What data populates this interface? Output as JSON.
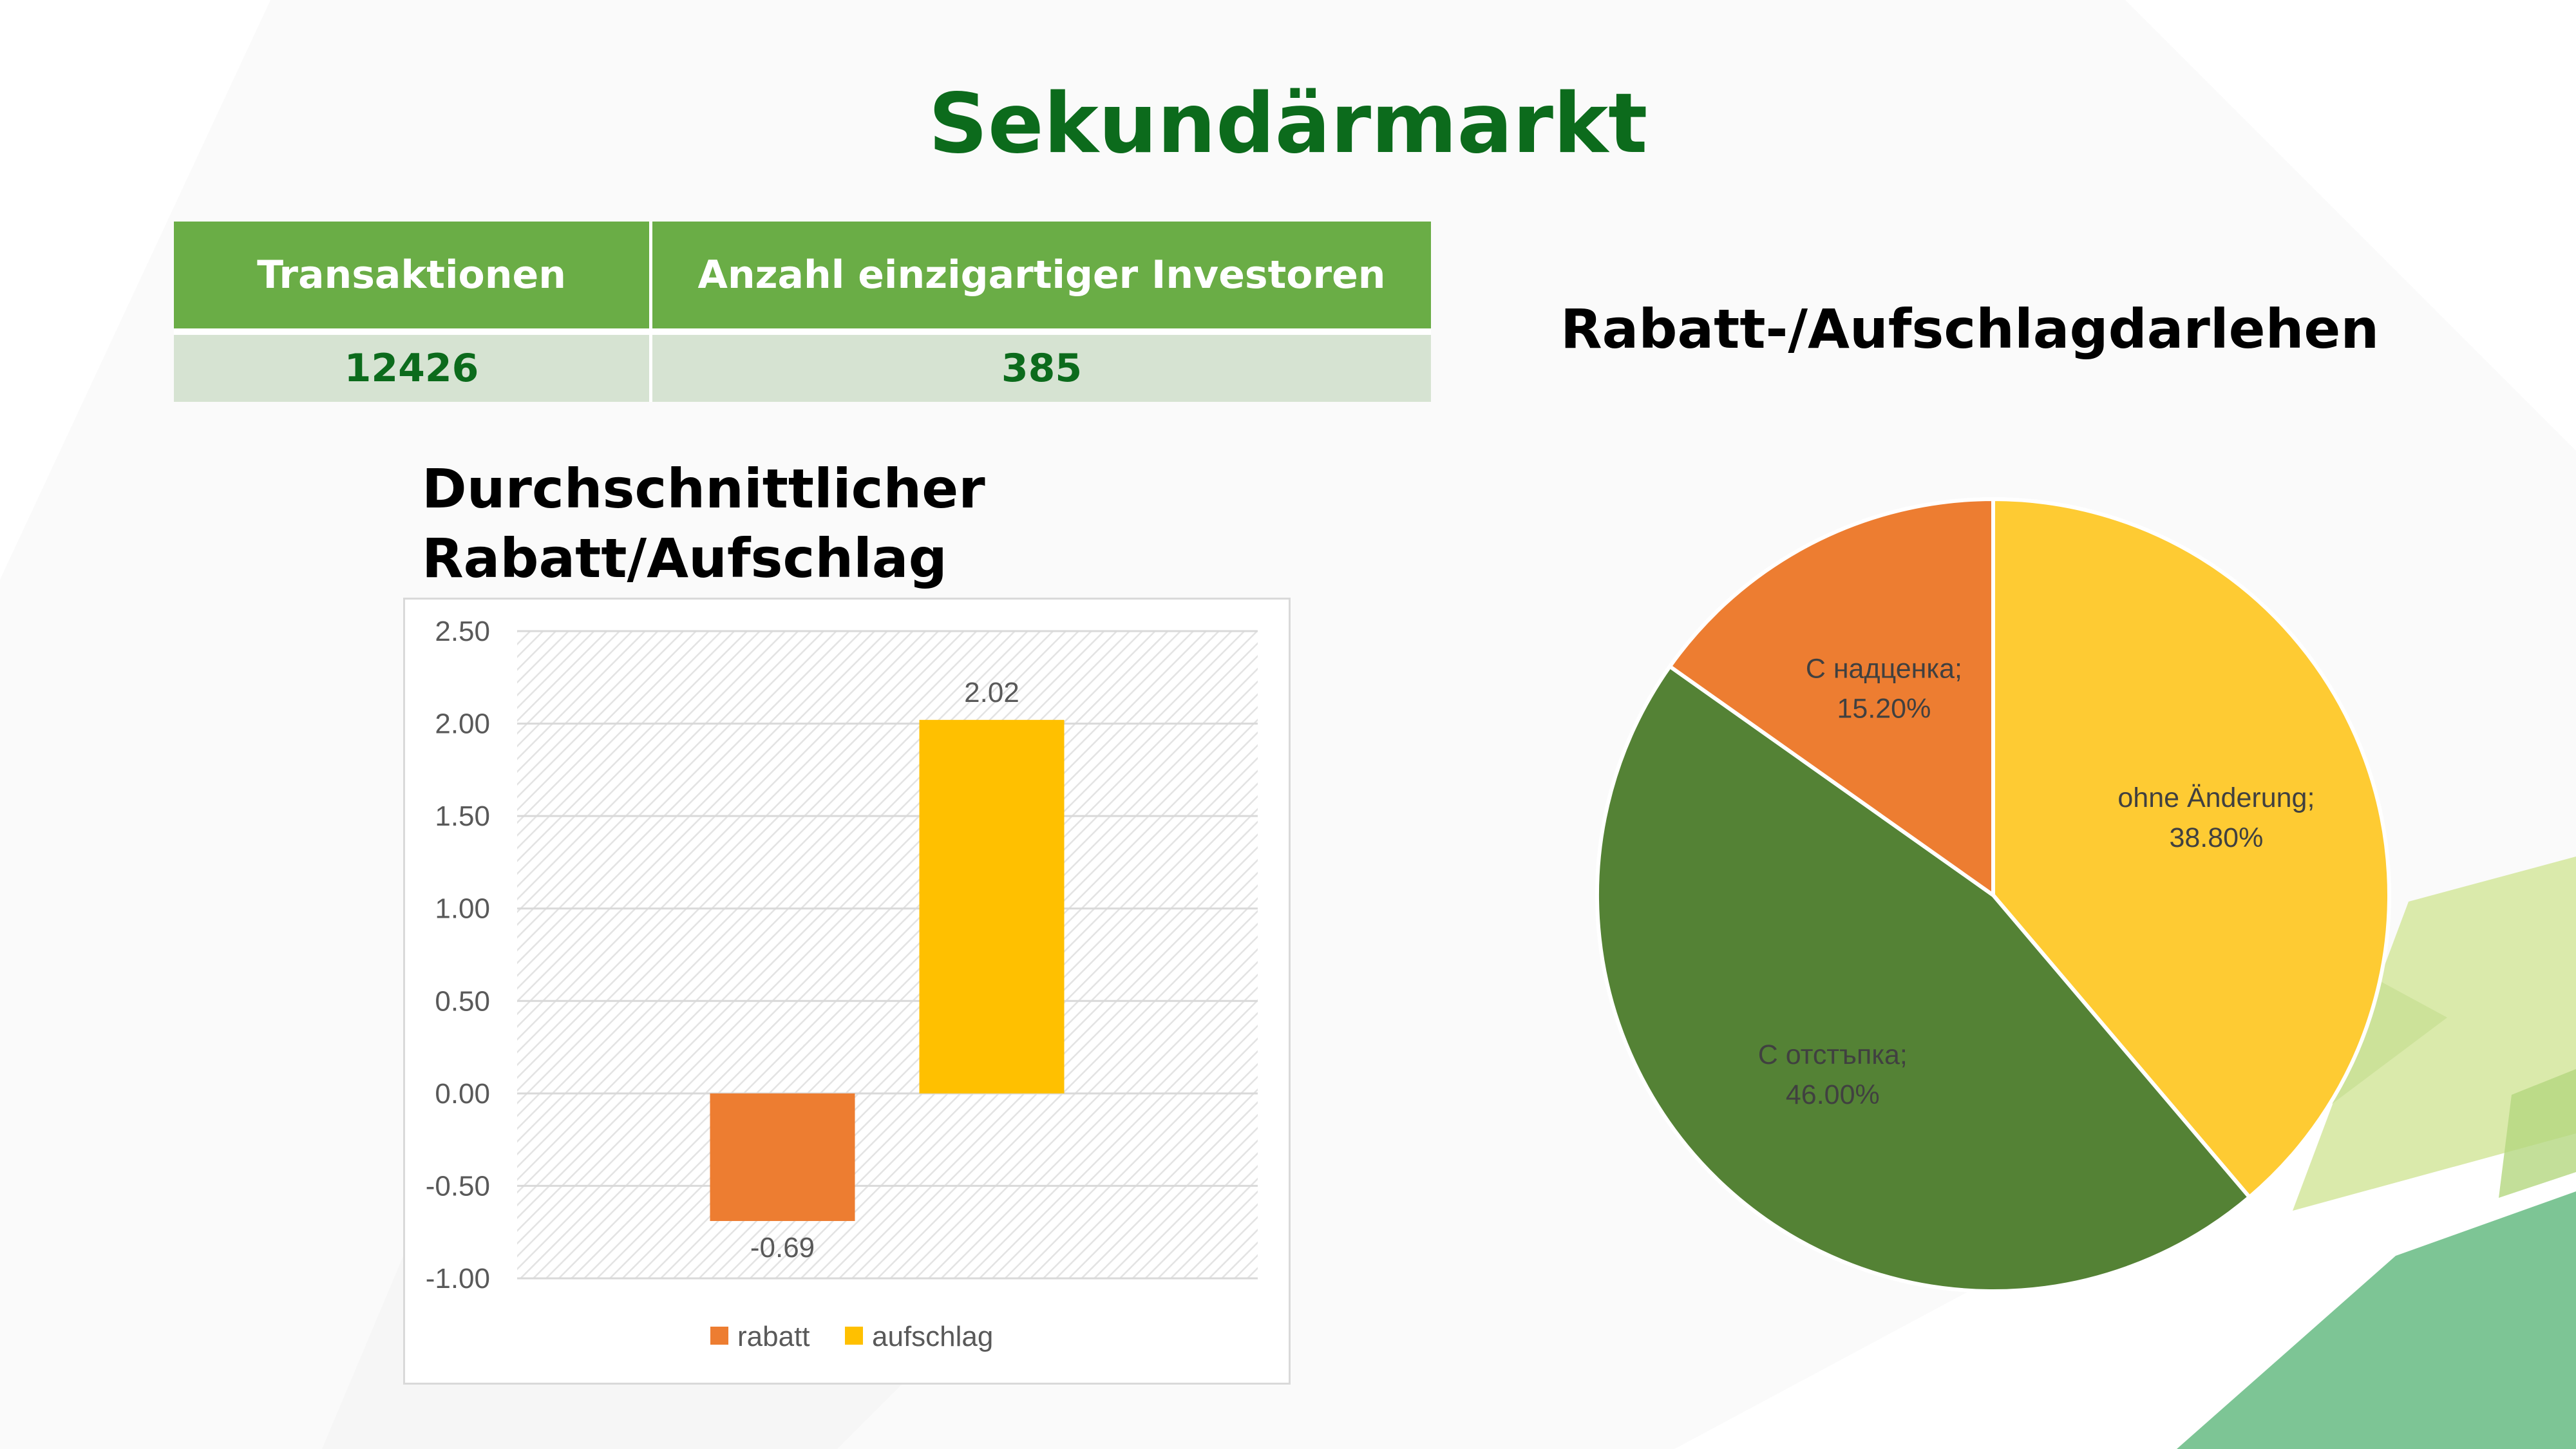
{
  "page": {
    "title": "Sekundärmarkt"
  },
  "stats_table": {
    "headers": [
      "Transaktionen",
      "Anzahl einzigartiger Investoren"
    ],
    "values": [
      "12426",
      "385"
    ]
  },
  "colors": {
    "title_green": "#0c6b1c",
    "header_green": "#6aad46",
    "value_row_bg": "#d6e3d2",
    "orange": "#ed7d31",
    "yellow": "#ffc000",
    "pie_yellow": "#fecb33",
    "pie_green": "#548235"
  },
  "chart_data": [
    {
      "type": "bar",
      "title_lines": [
        "Durchschnittlicher",
        "Rabatt/Aufschlag"
      ],
      "series": [
        {
          "name": "rabatt",
          "values": [
            -0.69
          ],
          "color": "#ed7d31"
        },
        {
          "name": "aufschlag",
          "values": [
            2.02
          ],
          "color": "#ffc000"
        }
      ],
      "data_labels": [
        "-0.69",
        "2.02"
      ],
      "ylim": [
        -1.0,
        2.5
      ],
      "yticks": [
        2.5,
        2.0,
        1.5,
        1.0,
        0.5,
        0.0,
        -0.5,
        -1.0
      ],
      "ytick_labels": [
        "2.50",
        "2.00",
        "1.50",
        "1.00",
        "0.50",
        "0.00",
        "-0.50",
        "-1.00"
      ],
      "grid": true,
      "legend": "bottom"
    },
    {
      "type": "pie",
      "title": "Rabatt-/Aufschlagdarlehen",
      "slices": [
        {
          "label": "ohne Änderung;",
          "pct_label": "38.80%",
          "value": 38.8,
          "color": "#fecb33"
        },
        {
          "label": "С отстъпка;",
          "pct_label": "46.00%",
          "value": 46.0,
          "color": "#548235"
        },
        {
          "label": "С надценка;",
          "pct_label": "15.20%",
          "value": 15.2,
          "color": "#ed7d31"
        }
      ],
      "start": "12 o'clock",
      "direction": "clockwise"
    }
  ]
}
